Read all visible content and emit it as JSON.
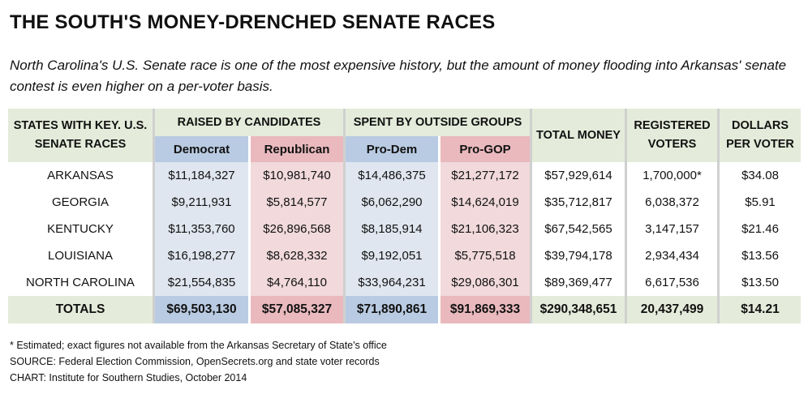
{
  "title": "THE SOUTH'S MONEY-DRENCHED SENATE RACES",
  "subtitle": "North Carolina's U.S. Senate race is one of the most expensive history, but the amount of money flooding into Arkansas' senate contest is even higher on a per-voter basis.",
  "headers": {
    "states": "STATES WITH KEY. U.S. SENATE RACES",
    "raised": "RAISED BY CANDIDATES",
    "spent": "SPENT BY OUTSIDE GROUPS",
    "democrat": "Democrat",
    "republican": "Republican",
    "pro_dem": "Pro-Dem",
    "pro_gop": "Pro-GOP",
    "total_money": "TOTAL MONEY",
    "registered_voters": "REGISTERED VOTERS",
    "dollars_per_voter": "DOLLARS PER VOTER"
  },
  "colors": {
    "header_green": "#e4ebda",
    "dem_blue": "#b9cbe2",
    "dem_blue_light": "#dfe6ef",
    "gop_red": "#e9b9bd",
    "gop_red_light": "#f1d9dc",
    "separator_gray": "#d0d0d0"
  },
  "chart_data": {
    "type": "table",
    "columns": [
      "STATES WITH KEY. U.S. SENATE RACES",
      "Democrat",
      "Republican",
      "Pro-Dem",
      "Pro-GOP",
      "TOTAL MONEY",
      "REGISTERED VOTERS",
      "DOLLARS PER VOTER"
    ],
    "rows": [
      {
        "state": "ARKANSAS",
        "democrat": "$11,184,327",
        "republican": "$10,981,740",
        "pro_dem": "$14,486,375",
        "pro_gop": "$21,277,172",
        "total": "$57,929,614",
        "voters": "1,700,000*",
        "per_voter": "$34.08"
      },
      {
        "state": "GEORGIA",
        "democrat": "$9,211,931",
        "republican": "$5,814,577",
        "pro_dem": "$6,062,290",
        "pro_gop": "$14,624,019",
        "total": "$35,712,817",
        "voters": "6,038,372",
        "per_voter": "$5.91"
      },
      {
        "state": "KENTUCKY",
        "democrat": "$11,353,760",
        "republican": "$26,896,568",
        "pro_dem": "$8,185,914",
        "pro_gop": "$21,106,323",
        "total": "$67,542,565",
        "voters": "3,147,157",
        "per_voter": "$21.46"
      },
      {
        "state": "LOUISIANA",
        "democrat": "$16,198,277",
        "republican": "$8,628,332",
        "pro_dem": "$9,192,051",
        "pro_gop": "$5,775,518",
        "total": "$39,794,178",
        "voters": "2,934,434",
        "per_voter": "$13.56"
      },
      {
        "state": "NORTH CAROLINA",
        "democrat": "$21,554,835",
        "republican": "$4,764,110",
        "pro_dem": "$33,964,231",
        "pro_gop": "$29,086,301",
        "total": "$89,369,477",
        "voters": "6,617,536",
        "per_voter": "$13.50"
      }
    ],
    "totals": {
      "state": "TOTALS",
      "democrat": "$69,503,130",
      "republican": "$57,085,327",
      "pro_dem": "$71,890,861",
      "pro_gop": "$91,869,333",
      "total": "$290,348,651",
      "voters": "20,437,499",
      "per_voter": "$14.21"
    }
  },
  "footnotes": {
    "note": "* Estimated; exact figures not available from the Arkansas Secretary of State's office",
    "source": "SOURCE: Federal Election Commission, OpenSecrets.org and state voter records",
    "chart": "CHART: Institute for Southern Studies, October 2014"
  }
}
